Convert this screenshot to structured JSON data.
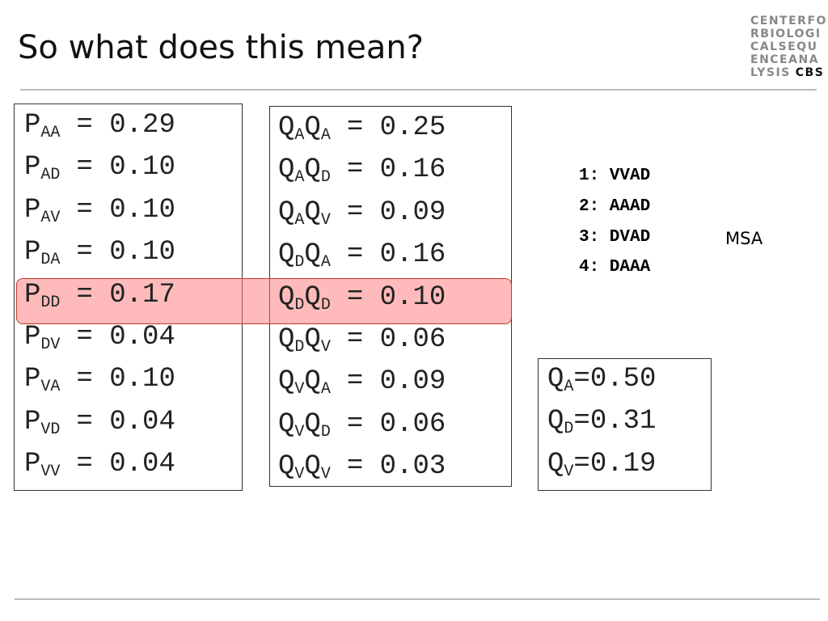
{
  "title": "So what does this mean?",
  "logo": {
    "lines": [
      "CENTERFO",
      "RBIOLOGI",
      "CALSEQU",
      "ENCEANA",
      "LYSIS"
    ],
    "bold": "CBS"
  },
  "p_box": {
    "rows": [
      {
        "sym": "P",
        "sub": "AA",
        "eq": "= 0.29"
      },
      {
        "sym": "P",
        "sub": "AD",
        "eq": "= 0.10"
      },
      {
        "sym": "P",
        "sub": "AV",
        "eq": "= 0.10"
      },
      {
        "sym": "P",
        "sub": "DA",
        "eq": "= 0.10"
      },
      {
        "sym": "P",
        "sub": "DD",
        "eq": "= 0.17"
      },
      {
        "sym": "P",
        "sub": "DV",
        "eq": "= 0.04"
      },
      {
        "sym": "P",
        "sub": "VA",
        "eq": "= 0.10"
      },
      {
        "sym": "P",
        "sub": "VD",
        "eq": "= 0.04"
      },
      {
        "sym": "P",
        "sub": "VV",
        "eq": "= 0.04"
      }
    ]
  },
  "q_box": {
    "rows": [
      {
        "sym1": "Q",
        "sub1": "A",
        "sym2": "Q",
        "sub2": "A",
        "eq": "= 0.25"
      },
      {
        "sym1": "Q",
        "sub1": "A",
        "sym2": "Q",
        "sub2": "D",
        "eq": "= 0.16"
      },
      {
        "sym1": "Q",
        "sub1": "A",
        "sym2": "Q",
        "sub2": "V",
        "eq": "= 0.09"
      },
      {
        "sym1": "Q",
        "sub1": "D",
        "sym2": "Q",
        "sub2": "A",
        "eq": "= 0.16"
      },
      {
        "sym1": "Q",
        "sub1": "D",
        "sym2": "Q",
        "sub2": "D",
        "eq": "= 0.10"
      },
      {
        "sym1": "Q",
        "sub1": "D",
        "sym2": "Q",
        "sub2": "V",
        "eq": "= 0.06"
      },
      {
        "sym1": "Q",
        "sub1": "V",
        "sym2": "Q",
        "sub2": "A",
        "eq": "= 0.09"
      },
      {
        "sym1": "Q",
        "sub1": "V",
        "sym2": "Q",
        "sub2": "D",
        "eq": "= 0.06"
      },
      {
        "sym1": "Q",
        "sub1": "V",
        "sym2": "Q",
        "sub2": "V",
        "eq": "= 0.03"
      }
    ]
  },
  "freq_box": {
    "rows": [
      {
        "sym": "Q",
        "sub": "A",
        "eq": "=0.50"
      },
      {
        "sym": "Q",
        "sub": "D",
        "eq": "=0.31"
      },
      {
        "sym": "Q",
        "sub": "V",
        "eq": "=0.19"
      }
    ]
  },
  "alignment": {
    "rows": [
      "1: VVAD",
      "2: AAAD",
      "3: DVAD",
      "4: DAAA"
    ],
    "label": "MSA"
  }
}
